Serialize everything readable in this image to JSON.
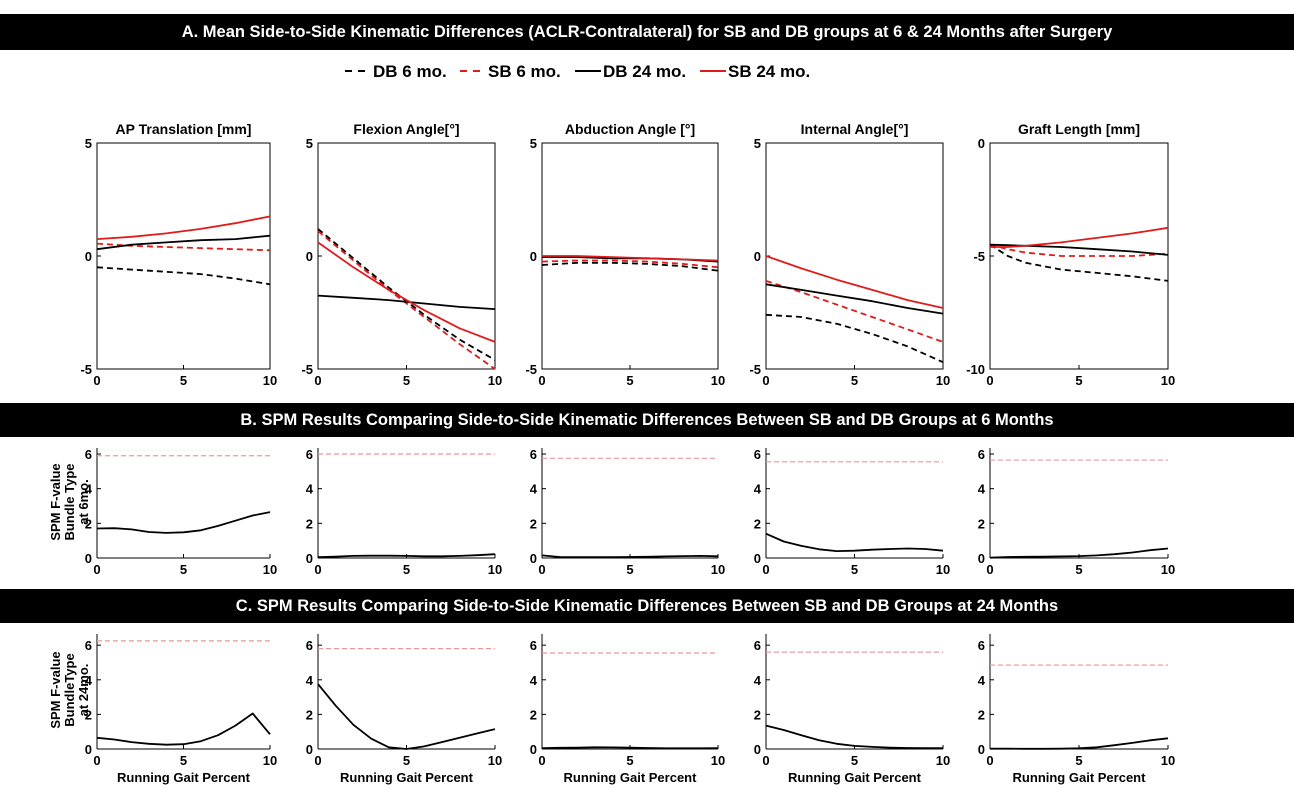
{
  "panel_a": {
    "title": "A. Mean Side-to-Side Kinematic Differences (ACLR-Contralateral) for SB and DB groups at 6 & 24 Months after Surgery"
  },
  "panel_b": {
    "title": "B. SPM Results Comparing Side-to-Side Kinematic Differences Between SB and DB Groups at 6 Months",
    "ylabel_lines": [
      "SPM F-value",
      "Bundle Type",
      "at 6mo."
    ]
  },
  "panel_c": {
    "title": "C. SPM Results Comparing Side-to-Side Kinematic Differences Between SB and DB Groups at 24 Months",
    "ylabel_lines": [
      "SPM F-value",
      "BundleType",
      "at 24mo."
    ],
    "xlabel": "Running Gait Percent"
  },
  "legend": [
    {
      "label": "DB 6 mo.",
      "color": "#000000",
      "dash": true
    },
    {
      "label": "SB 6 mo.",
      "color": "#e01b1b",
      "dash": true
    },
    {
      "label": "DB 24 mo.",
      "color": "#000000",
      "dash": false
    },
    {
      "label": "SB 24 mo.",
      "color": "#e01b1b",
      "dash": false
    }
  ],
  "colors": {
    "db": "#000000",
    "sb": "#e01b1b",
    "threshold": "#e89a9a"
  },
  "chart_data": [
    {
      "group": "A",
      "type": "line",
      "title": "AP Translation [mm]",
      "ylim": [
        -5,
        5
      ],
      "xlim": [
        0,
        10
      ],
      "yticks": [
        -5,
        0,
        5
      ],
      "xticks": [
        0,
        5,
        10
      ],
      "x": [
        0,
        2,
        4,
        6,
        8,
        10
      ],
      "series": [
        {
          "name": "DB 6 mo.",
          "dash": true,
          "color": "#000000",
          "values": [
            -0.5,
            -0.6,
            -0.7,
            -0.8,
            -1.0,
            -1.25
          ]
        },
        {
          "name": "SB 6 mo.",
          "dash": true,
          "color": "#e01b1b",
          "values": [
            0.55,
            0.45,
            0.4,
            0.35,
            0.3,
            0.25
          ]
        },
        {
          "name": "DB 24 mo.",
          "dash": false,
          "color": "#000000",
          "values": [
            0.3,
            0.5,
            0.6,
            0.7,
            0.75,
            0.9
          ]
        },
        {
          "name": "SB 24 mo.",
          "dash": false,
          "color": "#e01b1b",
          "values": [
            0.75,
            0.85,
            1.0,
            1.2,
            1.45,
            1.75
          ]
        }
      ]
    },
    {
      "group": "A",
      "type": "line",
      "title": "Flexion Angle[°]",
      "ylim": [
        -5,
        5
      ],
      "xlim": [
        0,
        10
      ],
      "yticks": [
        -5,
        0,
        5
      ],
      "xticks": [
        0,
        5,
        10
      ],
      "x": [
        0,
        2,
        4,
        6,
        8,
        10
      ],
      "series": [
        {
          "name": "DB 6 mo.",
          "dash": true,
          "color": "#000000",
          "values": [
            1.2,
            -0.1,
            -1.4,
            -2.6,
            -3.7,
            -4.6
          ]
        },
        {
          "name": "SB 6 mo.",
          "dash": true,
          "color": "#e01b1b",
          "values": [
            1.1,
            -0.2,
            -1.5,
            -2.7,
            -3.9,
            -5.0
          ]
        },
        {
          "name": "DB 24 mo.",
          "dash": false,
          "color": "#000000",
          "values": [
            -1.75,
            -1.85,
            -1.95,
            -2.1,
            -2.25,
            -2.35
          ]
        },
        {
          "name": "SB 24 mo.",
          "dash": false,
          "color": "#e01b1b",
          "values": [
            0.6,
            -0.5,
            -1.5,
            -2.4,
            -3.2,
            -3.8
          ]
        }
      ]
    },
    {
      "group": "A",
      "type": "line",
      "title": "Abduction Angle [°]",
      "ylim": [
        -5,
        5
      ],
      "xlim": [
        0,
        10
      ],
      "yticks": [
        -5,
        0,
        5
      ],
      "xticks": [
        0,
        5,
        10
      ],
      "x": [
        0,
        2,
        4,
        6,
        8,
        10
      ],
      "series": [
        {
          "name": "DB 6 mo.",
          "dash": true,
          "color": "#000000",
          "values": [
            -0.4,
            -0.3,
            -0.3,
            -0.35,
            -0.45,
            -0.65
          ]
        },
        {
          "name": "SB 6 mo.",
          "dash": true,
          "color": "#e01b1b",
          "values": [
            -0.25,
            -0.2,
            -0.2,
            -0.25,
            -0.35,
            -0.5
          ]
        },
        {
          "name": "DB 24 mo.",
          "dash": false,
          "color": "#000000",
          "values": [
            -0.05,
            -0.05,
            -0.1,
            -0.1,
            -0.15,
            -0.25
          ]
        },
        {
          "name": "SB 24 mo.",
          "dash": false,
          "color": "#e01b1b",
          "values": [
            0.0,
            0.0,
            -0.05,
            -0.1,
            -0.15,
            -0.2
          ]
        }
      ]
    },
    {
      "group": "A",
      "type": "line",
      "title": "Internal Angle[°]",
      "ylim": [
        -5,
        5
      ],
      "xlim": [
        0,
        10
      ],
      "yticks": [
        -5,
        0,
        5
      ],
      "xticks": [
        0,
        5,
        10
      ],
      "x": [
        0,
        2,
        4,
        6,
        8,
        10
      ],
      "series": [
        {
          "name": "DB 6 mo.",
          "dash": true,
          "color": "#000000",
          "values": [
            -2.6,
            -2.7,
            -3.0,
            -3.45,
            -4.0,
            -4.7
          ]
        },
        {
          "name": "SB 6 mo.",
          "dash": true,
          "color": "#e01b1b",
          "values": [
            -1.1,
            -1.6,
            -2.15,
            -2.7,
            -3.25,
            -3.8
          ]
        },
        {
          "name": "DB 24 mo.",
          "dash": false,
          "color": "#000000",
          "values": [
            -1.25,
            -1.5,
            -1.75,
            -2.0,
            -2.3,
            -2.55
          ]
        },
        {
          "name": "SB 24 mo.",
          "dash": false,
          "color": "#e01b1b",
          "values": [
            0.0,
            -0.55,
            -1.05,
            -1.5,
            -1.95,
            -2.3
          ]
        }
      ]
    },
    {
      "group": "A",
      "type": "line",
      "title": "Graft Length [mm]",
      "ylim": [
        -10,
        0
      ],
      "xlim": [
        0,
        10
      ],
      "yticks": [
        -10,
        -5,
        0
      ],
      "xticks": [
        0,
        5,
        10
      ],
      "x": [
        0,
        1,
        2,
        4,
        6,
        8,
        10
      ],
      "series": [
        {
          "name": "DB 6 mo.",
          "dash": true,
          "color": "#000000",
          "values": [
            -4.5,
            -5.0,
            -5.3,
            -5.6,
            -5.75,
            -5.9,
            -6.1
          ]
        },
        {
          "name": "SB 6 mo.",
          "dash": true,
          "color": "#e01b1b",
          "values": [
            -4.5,
            -4.7,
            -4.85,
            -5.0,
            -5.0,
            -5.0,
            -4.9
          ]
        },
        {
          "name": "DB 24 mo.",
          "dash": false,
          "color": "#000000",
          "values": [
            -4.5,
            -4.52,
            -4.55,
            -4.6,
            -4.7,
            -4.8,
            -4.95
          ]
        },
        {
          "name": "SB 24 mo.",
          "dash": false,
          "color": "#e01b1b",
          "values": [
            -4.6,
            -4.6,
            -4.55,
            -4.4,
            -4.2,
            -4.0,
            -3.75
          ]
        }
      ]
    },
    {
      "group": "B",
      "type": "line",
      "ylim": [
        0,
        6
      ],
      "xlim": [
        0,
        10
      ],
      "yticks": [
        0,
        2,
        4,
        6
      ],
      "xticks": [
        0,
        5,
        10
      ],
      "threshold": 5.9,
      "x": [
        0,
        1,
        2,
        3,
        4,
        5,
        6,
        7,
        8,
        9,
        10
      ],
      "series": [
        {
          "values": [
            1.7,
            1.72,
            1.65,
            1.5,
            1.45,
            1.48,
            1.6,
            1.85,
            2.15,
            2.45,
            2.65
          ]
        }
      ]
    },
    {
      "group": "B",
      "type": "line",
      "ylim": [
        0,
        6
      ],
      "xlim": [
        0,
        10
      ],
      "yticks": [
        0,
        2,
        4,
        6
      ],
      "xticks": [
        0,
        5,
        10
      ],
      "threshold": 6.0,
      "x": [
        0,
        1,
        2,
        3,
        4,
        5,
        6,
        7,
        8,
        9,
        10
      ],
      "series": [
        {
          "values": [
            0.05,
            0.08,
            0.12,
            0.13,
            0.13,
            0.12,
            0.1,
            0.1,
            0.12,
            0.16,
            0.22
          ]
        }
      ]
    },
    {
      "group": "B",
      "type": "line",
      "ylim": [
        0,
        6
      ],
      "xlim": [
        0,
        10
      ],
      "yticks": [
        0,
        2,
        4,
        6
      ],
      "xticks": [
        0,
        5,
        10
      ],
      "threshold": 5.75,
      "x": [
        0,
        1,
        2,
        3,
        4,
        5,
        6,
        7,
        8,
        9,
        10
      ],
      "series": [
        {
          "values": [
            0.15,
            0.06,
            0.05,
            0.05,
            0.05,
            0.06,
            0.07,
            0.09,
            0.11,
            0.12,
            0.1
          ]
        }
      ]
    },
    {
      "group": "B",
      "type": "line",
      "ylim": [
        0,
        6
      ],
      "xlim": [
        0,
        10
      ],
      "yticks": [
        0,
        2,
        4,
        6
      ],
      "xticks": [
        0,
        5,
        10
      ],
      "threshold": 5.55,
      "x": [
        0,
        1,
        2,
        3,
        4,
        5,
        6,
        7,
        8,
        9,
        10
      ],
      "series": [
        {
          "values": [
            1.4,
            0.95,
            0.7,
            0.5,
            0.4,
            0.42,
            0.48,
            0.52,
            0.55,
            0.52,
            0.42
          ]
        }
      ]
    },
    {
      "group": "B",
      "type": "line",
      "ylim": [
        0,
        6
      ],
      "xlim": [
        0,
        10
      ],
      "yticks": [
        0,
        2,
        4,
        6
      ],
      "xticks": [
        0,
        5,
        10
      ],
      "threshold": 5.65,
      "x": [
        0,
        1,
        2,
        3,
        4,
        5,
        6,
        7,
        8,
        9,
        10
      ],
      "series": [
        {
          "values": [
            0.02,
            0.06,
            0.07,
            0.08,
            0.09,
            0.11,
            0.15,
            0.22,
            0.32,
            0.45,
            0.55
          ]
        }
      ]
    },
    {
      "group": "C",
      "type": "line",
      "ylim": [
        0,
        6.3
      ],
      "xlim": [
        0,
        10
      ],
      "yticks": [
        0,
        2,
        4,
        6
      ],
      "xticks": [
        0,
        5,
        10
      ],
      "threshold": 6.25,
      "x": [
        0,
        1,
        2,
        3,
        4,
        5,
        6,
        7,
        8,
        9,
        10
      ],
      "series": [
        {
          "values": [
            0.65,
            0.55,
            0.4,
            0.3,
            0.25,
            0.28,
            0.45,
            0.8,
            1.35,
            2.05,
            0.85
          ]
        }
      ]
    },
    {
      "group": "C",
      "type": "line",
      "ylim": [
        0,
        6.3
      ],
      "xlim": [
        0,
        10
      ],
      "yticks": [
        0,
        2,
        4,
        6
      ],
      "xticks": [
        0,
        5,
        10
      ],
      "threshold": 5.8,
      "x": [
        0,
        1,
        2,
        3,
        4,
        5,
        6,
        7,
        8,
        9,
        10
      ],
      "series": [
        {
          "values": [
            3.75,
            2.5,
            1.4,
            0.6,
            0.1,
            0.0,
            0.15,
            0.4,
            0.65,
            0.9,
            1.15
          ]
        }
      ]
    },
    {
      "group": "C",
      "type": "line",
      "ylim": [
        0,
        6.3
      ],
      "xlim": [
        0,
        10
      ],
      "yticks": [
        0,
        2,
        4,
        6
      ],
      "xticks": [
        0,
        5,
        10
      ],
      "threshold": 5.55,
      "x": [
        0,
        1,
        2,
        3,
        4,
        5,
        6,
        7,
        8,
        9,
        10
      ],
      "series": [
        {
          "values": [
            0.05,
            0.07,
            0.08,
            0.1,
            0.09,
            0.08,
            0.06,
            0.04,
            0.04,
            0.04,
            0.05
          ]
        }
      ]
    },
    {
      "group": "C",
      "type": "line",
      "ylim": [
        0,
        6.3
      ],
      "xlim": [
        0,
        10
      ],
      "yticks": [
        0,
        2,
        4,
        6
      ],
      "xticks": [
        0,
        5,
        10
      ],
      "threshold": 5.6,
      "x": [
        0,
        1,
        2,
        3,
        4,
        5,
        6,
        7,
        8,
        9,
        10
      ],
      "series": [
        {
          "values": [
            1.35,
            1.1,
            0.8,
            0.5,
            0.3,
            0.18,
            0.12,
            0.08,
            0.06,
            0.05,
            0.05
          ]
        }
      ]
    },
    {
      "group": "C",
      "type": "line",
      "ylim": [
        0,
        6.3
      ],
      "xlim": [
        0,
        10
      ],
      "yticks": [
        0,
        2,
        4,
        6
      ],
      "xticks": [
        0,
        5,
        10
      ],
      "threshold": 4.85,
      "x": [
        0,
        1,
        2,
        3,
        4,
        5,
        6,
        7,
        8,
        9,
        10
      ],
      "series": [
        {
          "values": [
            0.02,
            0.02,
            0.01,
            0.01,
            0.02,
            0.04,
            0.1,
            0.22,
            0.35,
            0.5,
            0.62
          ]
        }
      ]
    }
  ]
}
